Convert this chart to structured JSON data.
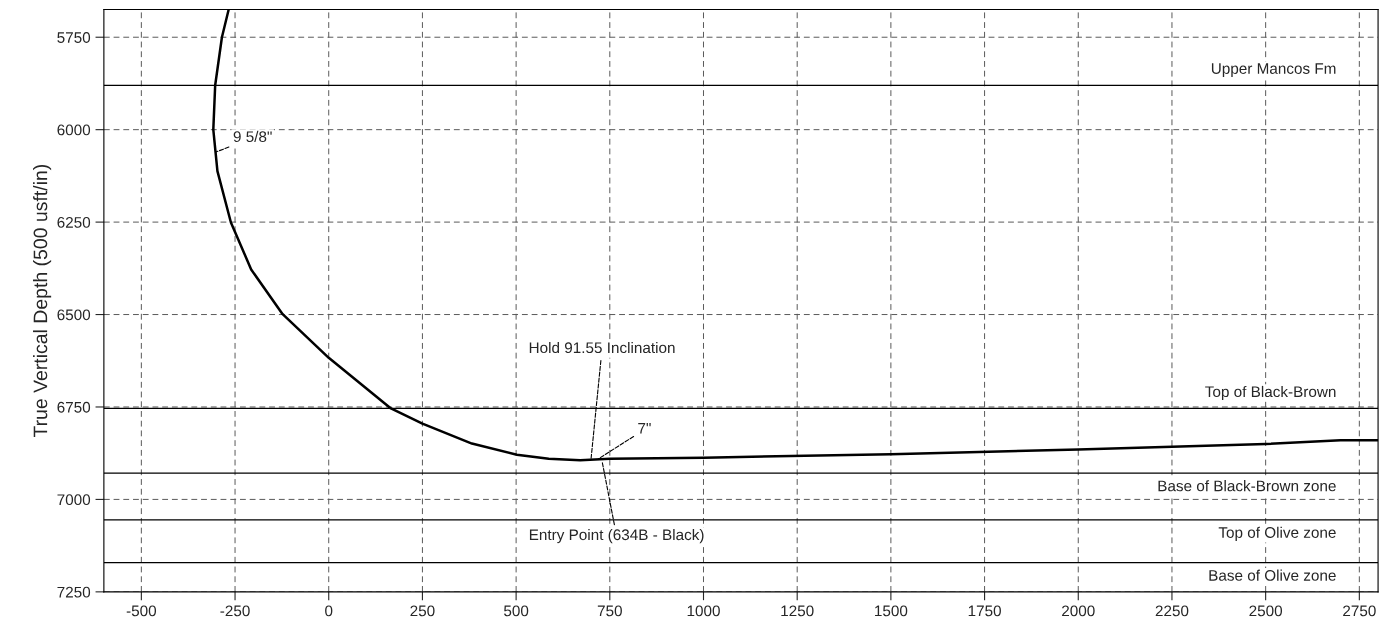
{
  "chart_data": {
    "type": "line",
    "ylabel": "True Vertical Depth (500 usft/in)",
    "series": [
      {
        "color": "#000000",
        "x": [
          -267,
          -285,
          -303,
          -308,
          -297,
          -261,
          -207,
          -123,
          0,
          166,
          250,
          382,
          502,
          587,
          671,
          750,
          1000,
          1500,
          2000,
          2500,
          2700,
          2800
        ],
        "values": [
          5675,
          5750,
          5880,
          6000,
          6112,
          6251,
          6378,
          6499,
          6617,
          6754,
          6795,
          6849,
          6879,
          6890,
          6894,
          6890,
          6887,
          6878,
          6865,
          6850,
          6840,
          6840
        ]
      }
    ],
    "xlim": [
      -600,
      2800
    ],
    "xticks": [
      -500,
      -250,
      0,
      250,
      500,
      750,
      1000,
      1250,
      1500,
      1750,
      2000,
      2250,
      2500,
      2750
    ],
    "ylim": [
      7250,
      5675
    ],
    "yticks": [
      5750,
      6000,
      6250,
      6500,
      6750,
      7000,
      7250
    ],
    "grid": true,
    "line_style": "solid",
    "marker": "none",
    "ref_lines": [
      {
        "axis": "y",
        "value": 5880,
        "label": "Upper Mancos Fm"
      },
      {
        "axis": "y",
        "value": 6754,
        "label": "Top of Black-Brown"
      },
      {
        "axis": "y",
        "value": 6929,
        "label": "Base of Black-Brown zone"
      },
      {
        "axis": "y",
        "value": 7055,
        "label": "Top of Olive zone"
      },
      {
        "axis": "y",
        "value": 7171,
        "label": "Base of Olive zone"
      }
    ],
    "annotations": [
      {
        "text": "9 5/8\"",
        "x": -300,
        "y": 6060
      },
      {
        "text": "Hold 91.55 Inclination",
        "x": 700,
        "y": 6890
      },
      {
        "text": "7\"",
        "x": 720,
        "y": 6890
      },
      {
        "text": "Entry Point (634B - Black)",
        "x": 730,
        "y": 6900
      }
    ]
  }
}
